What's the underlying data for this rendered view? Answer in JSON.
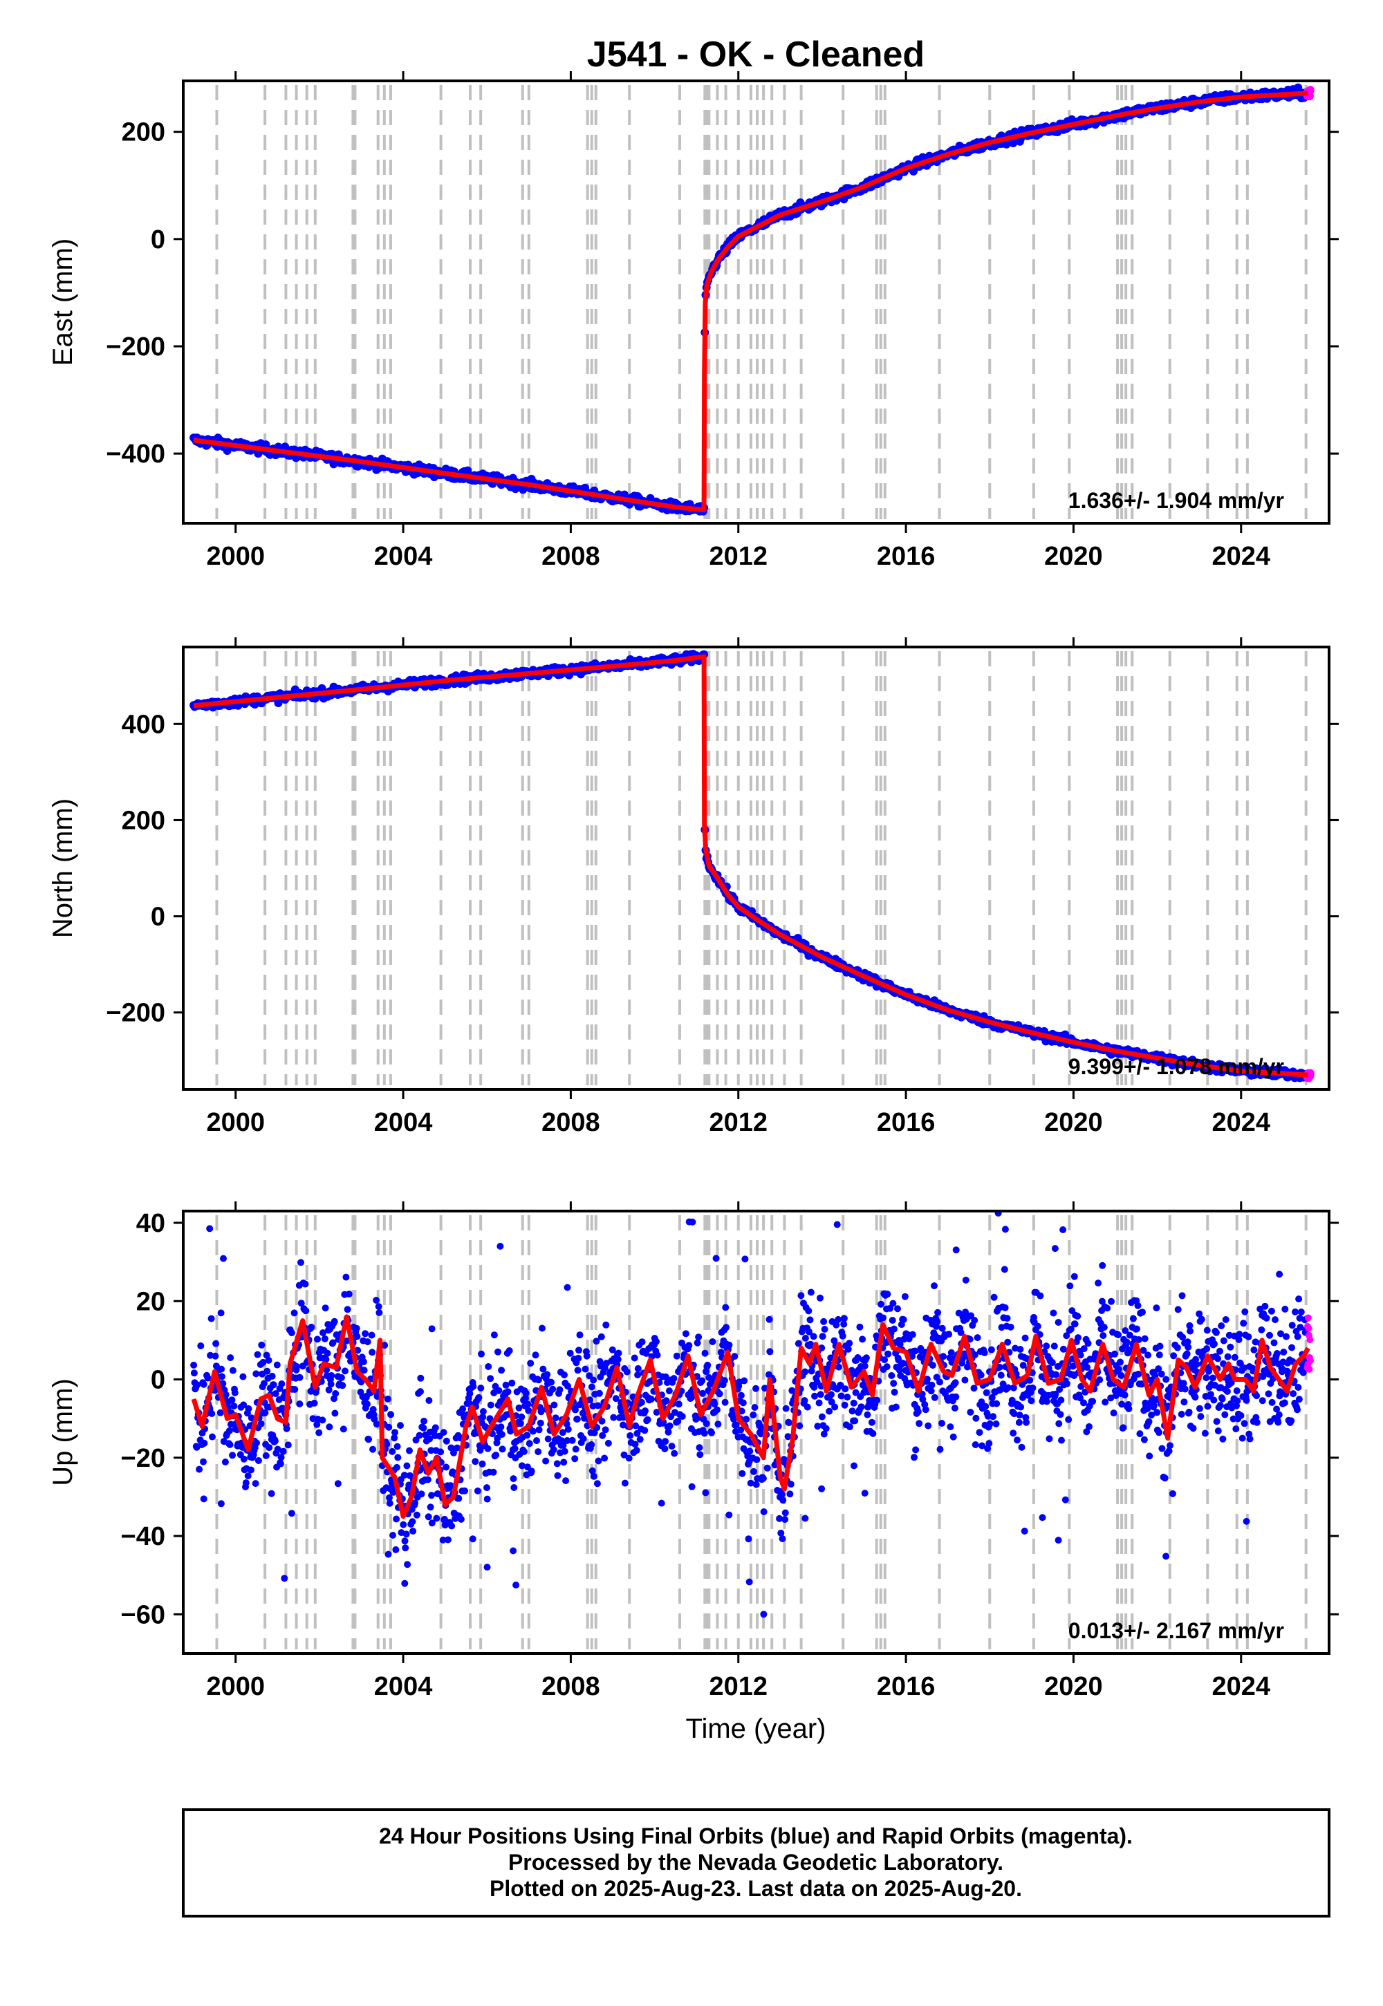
{
  "chart_data": {
    "type": "scatter",
    "title": "J541  - OK - Cleaned",
    "xlabel": "Time (year)",
    "xlim": [
      1998.75,
      2026.1
    ],
    "xticks": [
      2000,
      2004,
      2008,
      2012,
      2016,
      2020,
      2024
    ],
    "xtick_labels": [
      "2000",
      "2004",
      "2008",
      "2012",
      "2016",
      "2020",
      "2024"
    ],
    "event_lines_year": [
      1999.55,
      2000.7,
      2001.2,
      2001.45,
      2001.7,
      2001.9,
      2002.8,
      2002.85,
      2003.4,
      2003.55,
      2003.7,
      2004.9,
      2005.6,
      2005.85,
      2006.85,
      2007.0,
      2008.4,
      2008.5,
      2008.6,
      2009.4,
      2010.6,
      2011.2,
      2011.25,
      2011.3,
      2011.5,
      2011.7,
      2012.0,
      2012.3,
      2012.45,
      2012.6,
      2012.8,
      2013.1,
      2013.5,
      2014.5,
      2015.3,
      2015.4,
      2015.5,
      2016.8,
      2018.0,
      2019.05,
      2019.9,
      2021.05,
      2021.15,
      2021.25,
      2021.4,
      2022.3,
      2023.2,
      2023.9,
      2024.15,
      2025.55
    ],
    "panels": [
      {
        "id": "east",
        "ylabel": "East (mm)",
        "ylim": [
          -530,
          295
        ],
        "yticks": [
          -400,
          -200,
          0,
          200
        ],
        "ytick_labels": [
          "−400",
          "−200",
          "0",
          "200"
        ],
        "rate_text": "1.636+/- 1.904 mm/yr",
        "model": [
          [
            1999.0,
            -375
          ],
          [
            2001.0,
            -395
          ],
          [
            2003.0,
            -415
          ],
          [
            2005.0,
            -437
          ],
          [
            2007.0,
            -458
          ],
          [
            2009.0,
            -482
          ],
          [
            2010.5,
            -500
          ],
          [
            2011.18,
            -505
          ],
          [
            2011.19,
            -250
          ],
          [
            2011.21,
            -120
          ],
          [
            2011.25,
            -85
          ],
          [
            2011.35,
            -62
          ],
          [
            2011.5,
            -40
          ],
          [
            2011.75,
            -15
          ],
          [
            2012.0,
            5
          ],
          [
            2012.5,
            25
          ],
          [
            2013.0,
            45
          ],
          [
            2014.0,
            70
          ],
          [
            2015.0,
            98
          ],
          [
            2016.0,
            132
          ],
          [
            2017.0,
            158
          ],
          [
            2018.0,
            180
          ],
          [
            2019.0,
            198
          ],
          [
            2020.0,
            214
          ],
          [
            2021.0,
            230
          ],
          [
            2022.0,
            244
          ],
          [
            2023.0,
            256
          ],
          [
            2024.0,
            265
          ],
          [
            2025.6,
            272
          ]
        ]
      },
      {
        "id": "north",
        "ylabel": "North (mm)",
        "ylim": [
          -360,
          560
        ],
        "yticks": [
          -200,
          0,
          200,
          400
        ],
        "ytick_labels": [
          "−200",
          "0",
          "200",
          "400"
        ],
        "rate_text": "9.399+/- 1.078 mm/yr",
        "model": [
          [
            1999.0,
            438
          ],
          [
            2001.0,
            455
          ],
          [
            2003.0,
            472
          ],
          [
            2005.0,
            490
          ],
          [
            2007.0,
            505
          ],
          [
            2009.0,
            520
          ],
          [
            2010.5,
            532
          ],
          [
            2011.18,
            540
          ],
          [
            2011.19,
            190
          ],
          [
            2011.22,
            140
          ],
          [
            2011.3,
            105
          ],
          [
            2011.5,
            80
          ],
          [
            2011.75,
            45
          ],
          [
            2012.0,
            20
          ],
          [
            2012.5,
            -10
          ],
          [
            2013.0,
            -38
          ],
          [
            2014.0,
            -85
          ],
          [
            2015.0,
            -125
          ],
          [
            2016.0,
            -163
          ],
          [
            2017.0,
            -195
          ],
          [
            2018.0,
            -220
          ],
          [
            2019.0,
            -242
          ],
          [
            2020.0,
            -262
          ],
          [
            2021.0,
            -280
          ],
          [
            2022.0,
            -295
          ],
          [
            2023.0,
            -310
          ],
          [
            2024.0,
            -322
          ],
          [
            2025.6,
            -330
          ]
        ]
      },
      {
        "id": "up",
        "ylabel": "Up (mm)",
        "ylim": [
          -70,
          43
        ],
        "yticks": [
          -60,
          -40,
          -20,
          0,
          20,
          40
        ],
        "ytick_labels": [
          "−60",
          "−40",
          "−20",
          "0",
          "20",
          "40"
        ],
        "rate_text": "0.013+/- 2.167 mm/yr",
        "model": [
          [
            1999.0,
            -5
          ],
          [
            1999.2,
            -12
          ],
          [
            1999.5,
            2
          ],
          [
            1999.8,
            -10
          ],
          [
            2000.0,
            -9
          ],
          [
            2000.3,
            -18
          ],
          [
            2000.6,
            -5
          ],
          [
            2000.8,
            -4
          ],
          [
            2001.0,
            -10
          ],
          [
            2001.2,
            -11
          ],
          [
            2001.3,
            4
          ],
          [
            2001.6,
            15
          ],
          [
            2001.9,
            -2
          ],
          [
            2002.1,
            4
          ],
          [
            2002.4,
            3
          ],
          [
            2002.65,
            16
          ],
          [
            2002.9,
            2
          ],
          [
            2003.1,
            0
          ],
          [
            2003.3,
            -3
          ],
          [
            2003.45,
            10
          ],
          [
            2003.5,
            -20
          ],
          [
            2003.8,
            -25
          ],
          [
            2004.0,
            -35
          ],
          [
            2004.2,
            -30
          ],
          [
            2004.4,
            -18
          ],
          [
            2004.6,
            -24
          ],
          [
            2004.8,
            -20
          ],
          [
            2005.0,
            -32
          ],
          [
            2005.2,
            -30
          ],
          [
            2005.5,
            -12
          ],
          [
            2005.65,
            -7
          ],
          [
            2005.9,
            -16
          ],
          [
            2006.1,
            -12
          ],
          [
            2006.5,
            -5
          ],
          [
            2006.7,
            -14
          ],
          [
            2007.0,
            -12
          ],
          [
            2007.3,
            -2
          ],
          [
            2007.6,
            -14
          ],
          [
            2007.9,
            -9
          ],
          [
            2008.2,
            0
          ],
          [
            2008.5,
            -12
          ],
          [
            2008.8,
            -7
          ],
          [
            2009.1,
            3
          ],
          [
            2009.4,
            -12
          ],
          [
            2009.6,
            -4
          ],
          [
            2009.9,
            5
          ],
          [
            2010.2,
            -10
          ],
          [
            2010.5,
            -4
          ],
          [
            2010.8,
            6
          ],
          [
            2011.1,
            -9
          ],
          [
            2011.4,
            -3
          ],
          [
            2011.75,
            7
          ],
          [
            2012.0,
            -10
          ],
          [
            2012.3,
            -14
          ],
          [
            2012.6,
            -20
          ],
          [
            2012.75,
            0
          ],
          [
            2013.0,
            -25
          ],
          [
            2013.1,
            -28
          ],
          [
            2013.3,
            -15
          ],
          [
            2013.5,
            8
          ],
          [
            2013.7,
            4
          ],
          [
            2013.85,
            9
          ],
          [
            2014.1,
            -3
          ],
          [
            2014.4,
            9
          ],
          [
            2014.7,
            -2
          ],
          [
            2015.0,
            2
          ],
          [
            2015.2,
            -4
          ],
          [
            2015.45,
            14
          ],
          [
            2015.7,
            8
          ],
          [
            2016.0,
            7
          ],
          [
            2016.3,
            -3
          ],
          [
            2016.6,
            9
          ],
          [
            2016.9,
            2
          ],
          [
            2017.1,
            1
          ],
          [
            2017.4,
            11
          ],
          [
            2017.7,
            -1
          ],
          [
            2018.0,
            0
          ],
          [
            2018.3,
            9
          ],
          [
            2018.6,
            -1
          ],
          [
            2018.9,
            1
          ],
          [
            2019.1,
            11
          ],
          [
            2019.4,
            -1
          ],
          [
            2019.7,
            0
          ],
          [
            2019.95,
            10
          ],
          [
            2020.2,
            0
          ],
          [
            2020.4,
            -3
          ],
          [
            2020.7,
            9
          ],
          [
            2020.95,
            0
          ],
          [
            2021.2,
            -2
          ],
          [
            2021.5,
            9
          ],
          [
            2021.8,
            -4
          ],
          [
            2022.0,
            0
          ],
          [
            2022.25,
            -15
          ],
          [
            2022.5,
            5
          ],
          [
            2022.7,
            3
          ],
          [
            2022.9,
            -2
          ],
          [
            2023.2,
            6
          ],
          [
            2023.5,
            0
          ],
          [
            2023.7,
            4
          ],
          [
            2023.85,
            0
          ],
          [
            2024.1,
            0
          ],
          [
            2024.3,
            -3
          ],
          [
            2024.5,
            10
          ],
          [
            2024.7,
            3
          ],
          [
            2024.9,
            0
          ],
          [
            2025.1,
            -3
          ],
          [
            2025.3,
            4
          ],
          [
            2025.5,
            6
          ],
          [
            2025.6,
            8
          ]
        ]
      }
    ],
    "series": [
      {
        "name": "Final Orbits",
        "color": "#0000ff"
      },
      {
        "name": "Rapid Orbits",
        "color": "#ff00ff"
      },
      {
        "name": "",
        "color": "#ff0000"
      }
    ],
    "grid": false
  },
  "footer": {
    "line1": "24 Hour Positions Using Final Orbits (blue) and Rapid Orbits (magenta).",
    "line2": "Processed by the Nevada Geodetic Laboratory.",
    "line3": "Plotted on 2025-Aug-23. Last data on 2025-Aug-20."
  },
  "colors": {
    "event_line": "#c0c0c0",
    "frame": "#000000"
  }
}
